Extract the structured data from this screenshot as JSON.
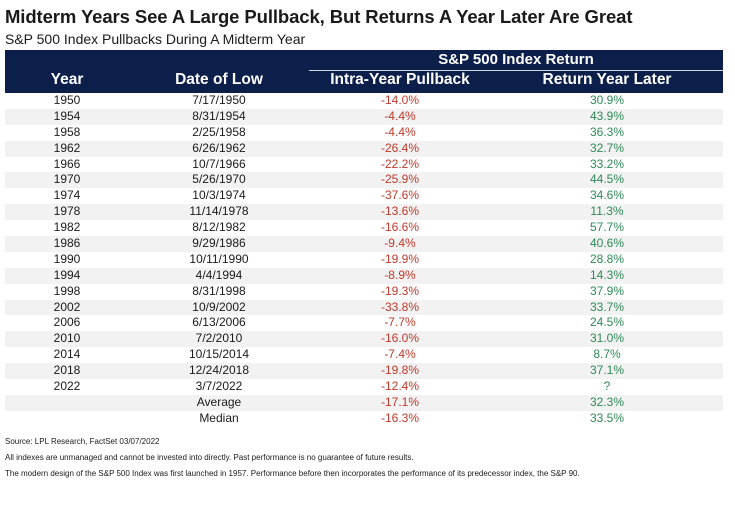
{
  "title": "Midterm Years See A Large Pullback, But Returns A Year Later Are Great",
  "subtitle": "S&P 500 Index Pullbacks During A Midterm Year",
  "header": {
    "group_label": "S&P 500 Index Return",
    "columns": [
      "Year",
      "Date of Low",
      "Intra-Year Pullback",
      "Return Year Later"
    ]
  },
  "chart_data": {
    "type": "table",
    "columns": [
      "Year",
      "Date of Low",
      "Intra-Year Pullback",
      "Return Year Later"
    ],
    "rows": [
      [
        "1950",
        "7/17/1950",
        "-14.0%",
        "30.9%"
      ],
      [
        "1954",
        "8/31/1954",
        "-4.4%",
        "43.9%"
      ],
      [
        "1958",
        "2/25/1958",
        "-4.4%",
        "36.3%"
      ],
      [
        "1962",
        "6/26/1962",
        "-26.4%",
        "32.7%"
      ],
      [
        "1966",
        "10/7/1966",
        "-22.2%",
        "33.2%"
      ],
      [
        "1970",
        "5/26/1970",
        "-25.9%",
        "44.5%"
      ],
      [
        "1974",
        "10/3/1974",
        "-37.6%",
        "34.6%"
      ],
      [
        "1978",
        "11/14/1978",
        "-13.6%",
        "11.3%"
      ],
      [
        "1982",
        "8/12/1982",
        "-16.6%",
        "57.7%"
      ],
      [
        "1986",
        "9/29/1986",
        "-9.4%",
        "40.6%"
      ],
      [
        "1990",
        "10/11/1990",
        "-19.9%",
        "28.8%"
      ],
      [
        "1994",
        "4/4/1994",
        "-8.9%",
        "14.3%"
      ],
      [
        "1998",
        "8/31/1998",
        "-19.3%",
        "37.9%"
      ],
      [
        "2002",
        "10/9/2002",
        "-33.8%",
        "33.7%"
      ],
      [
        "2006",
        "6/13/2006",
        "-7.7%",
        "24.5%"
      ],
      [
        "2010",
        "7/2/2010",
        "-16.0%",
        "31.0%"
      ],
      [
        "2014",
        "10/15/2014",
        "-7.4%",
        "8.7%"
      ],
      [
        "2018",
        "12/24/2018",
        "-19.8%",
        "37.1%"
      ],
      [
        "2022",
        "3/7/2022",
        "-12.4%",
        "?"
      ],
      [
        "",
        "Average",
        "-17.1%",
        "32.3%"
      ],
      [
        "",
        "Median",
        "-16.3%",
        "33.5%"
      ]
    ]
  },
  "notes": [
    "Source: LPL Research, FactSet 03/07/2022",
    "All indexes are unmanaged and cannot be invested into directly. Past performance is no guarantee of future results.",
    "The modern design of the S&P 500 Index was first launched in 1957. Performance before then incorporates the performance of its predecessor index, the S&P 90."
  ],
  "colors": {
    "header_bg": "#0c1f4b",
    "negative": "#c0392b",
    "positive": "#2e8b57",
    "alt_row": "#f2f2f2"
  }
}
